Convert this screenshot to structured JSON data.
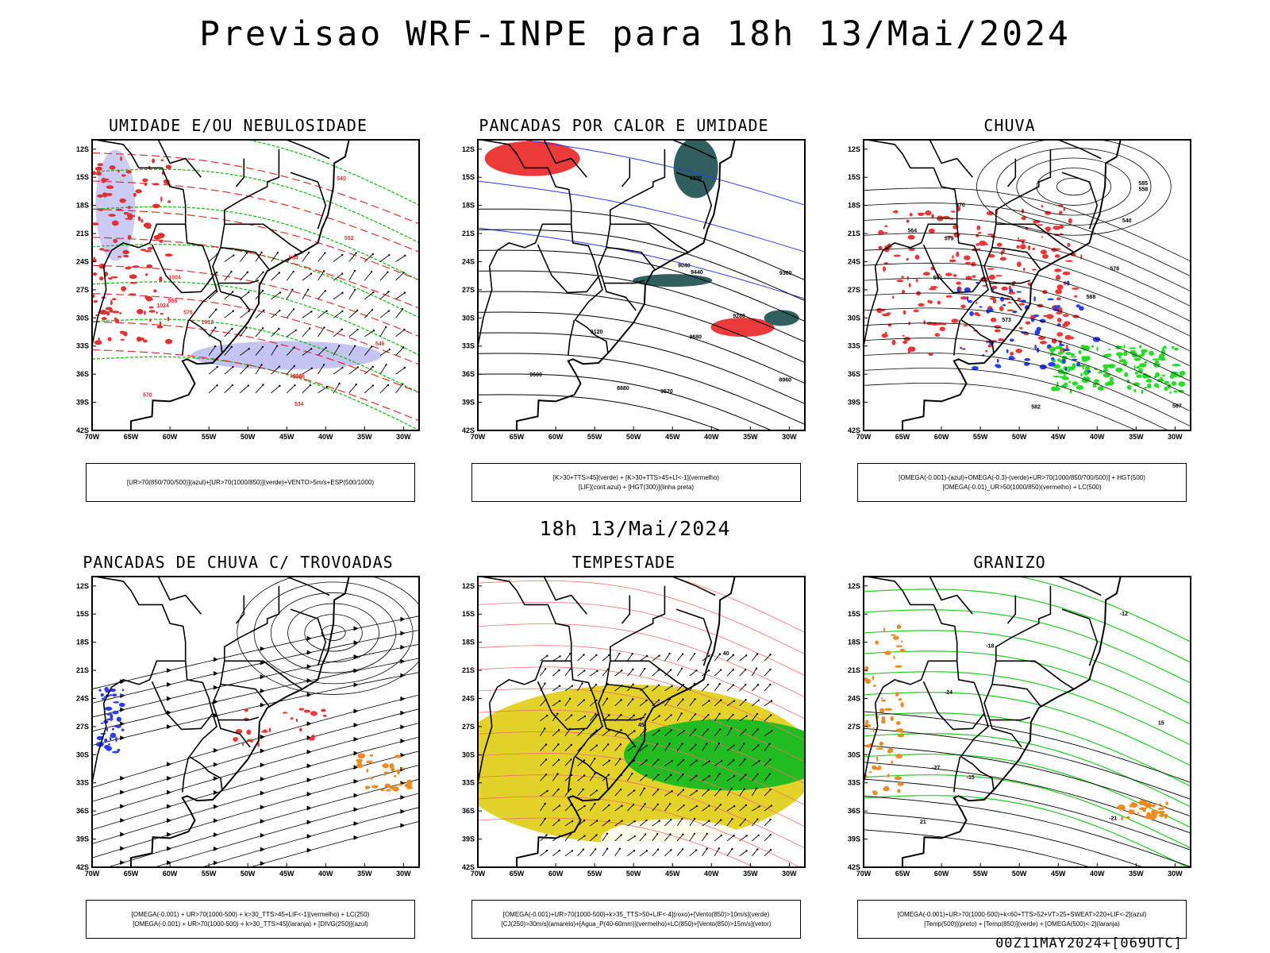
{
  "title": "Previsao WRF-INPE  para 18h 13/Mai/2024",
  "mid_title": "18h 13/Mai/2024",
  "footer": "00Z11MAY2024+[069UTC]",
  "chart_data": {
    "type": "map-panels",
    "lat_ticks": [
      "12S",
      "15S",
      "18S",
      "21S",
      "24S",
      "27S",
      "30S",
      "33S",
      "36S",
      "39S",
      "42S"
    ],
    "lon_ticks": [
      "70W",
      "65W",
      "60W",
      "55W",
      "50W",
      "45W",
      "40W",
      "35W",
      "30W"
    ],
    "panels": [
      {
        "title": "UMIDADE E/OU NEBULOSIDADE",
        "legend": [
          "[UR>70(850/700/500)](azul)+[UR>70(1000/850)](verde)+VENTO>5m/s+ESP(500/1000)"
        ],
        "contour_labels": [
          "1008",
          "1012",
          "1016",
          "1024",
          "1004",
          "576",
          "570",
          "564",
          "558",
          "552",
          "546",
          "540",
          "534"
        ]
      },
      {
        "title": "PANCADAS POR CALOR E UMIDADE",
        "legend": [
          "[K>30+TTS>45](verde)  +  [K>30+TTS>45+LI<-1](vermelho)",
          "[LIF](cont.azul)  +  [HGT(300)](linha preta)"
        ],
        "contour_labels": [
          "9680",
          "9600",
          "9520",
          "9440",
          "9360",
          "9280",
          "9200",
          "9120",
          "9040",
          "8960",
          "8880"
        ]
      },
      {
        "title": "CHUVA",
        "legend": [
          "[OMEGA(-0.001)-(azul)+OMEGA(-0.3)-(verde)+UR>70(1000/850/700/500)]  +  HGT(500)",
          "[OMEGA(-0.01)_UR>50(1000/850)(vermelho)  +  LC(500)"
        ],
        "contour_labels": [
          "588",
          "585",
          "582",
          "579",
          "576",
          "573",
          "570",
          "567",
          "564",
          "561",
          "558",
          "540"
        ]
      },
      {
        "title": "PANCADAS DE CHUVA C/ TROVOADAS",
        "legend": [
          "[OMEGA(-0.001)  +  UR>70(1000-500)  +  k>30_TTS>45+LIF<-1](vermelho)  +  LC(250)",
          "[OMEGA(-0.001)  +  UR>70(1000-500)  +  k>30_TTS>45](laranja)  +  [DIVG(250)](azul)"
        ],
        "contour_labels": []
      },
      {
        "title": "TEMPESTADE",
        "legend": [
          "[OMEGA(-0.001)+UR>70(1000-500)+k>35_TTS>50+LIF<-4](roxo)+[Vento(850)>10m/s](verde)",
          "[CJ(250)>30m/s](amarelo)+[Agua_P(40-60mm)](vermelho)+LC(850)+[Vento(850)>15m/s](vetor)"
        ],
        "contour_labels": [
          "40",
          "45"
        ]
      },
      {
        "title": "GRANIZO",
        "legend": [
          "[OMEGA(-0.001)+UR>70(1000-500)+k<60+TTS>52+VT>25+SWEAT>220+LIF<-2](azul)",
          "[Temp(500)](preto)  +  [Temp(850)](verde)  +  [OMEGA(500)<-2](laranja)"
        ],
        "contour_labels": [
          "-12",
          "-15",
          "-18",
          "-21",
          "-24",
          "-27",
          "15",
          "21"
        ]
      }
    ]
  }
}
